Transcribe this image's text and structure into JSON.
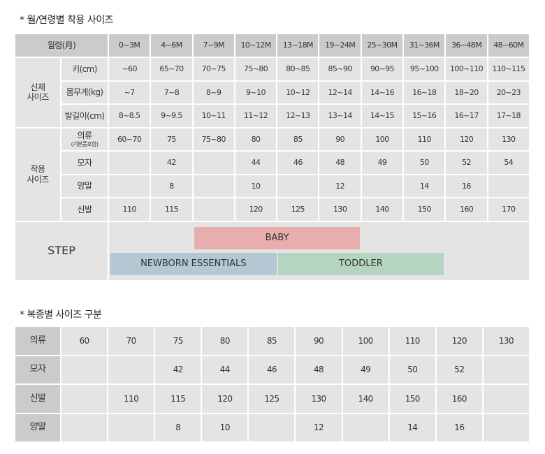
{
  "section1": {
    "title": "* 월/연령별 착용 사이즈",
    "header_label": "월령(月)",
    "ages": [
      "0~3M",
      "4~6M",
      "7~9M",
      "10~12M",
      "13~18M",
      "19~24M",
      "25~30M",
      "31~36M",
      "36~48M",
      "48~60M"
    ],
    "groups": [
      {
        "label": "신체\n사이즈",
        "rows": [
          {
            "label": "키(cm)",
            "values": [
              "~60",
              "65~70",
              "70~75",
              "75~80",
              "80~85",
              "85~90",
              "90~95",
              "95~100",
              "100~110",
              "110~115"
            ]
          },
          {
            "label": "몸무게(kg)",
            "values": [
              "~7",
              "7~8",
              "8~9",
              "9~10",
              "10~12",
              "12~14",
              "14~16",
              "16~18",
              "18~20",
              "20~23"
            ]
          },
          {
            "label": "발길이(cm)",
            "values": [
              "8~8.5",
              "9~9.5",
              "10~11",
              "11~12",
              "12~13",
              "13~14",
              "14~15",
              "15~16",
              "16~17",
              "17~18"
            ]
          }
        ]
      },
      {
        "label": "착용\n사이즈",
        "rows": [
          {
            "label": "의류",
            "sublabel": "(기본품포함)",
            "values": [
              "60~70",
              "75",
              "75~80",
              "80",
              "85",
              "90",
              "100",
              "110",
              "120",
              "130"
            ]
          },
          {
            "label": "모자",
            "values": [
              "",
              "42",
              "",
              "44",
              "46",
              "48",
              "49",
              "50",
              "52",
              "54"
            ]
          },
          {
            "label": "양말",
            "values": [
              "",
              "8",
              "",
              "10",
              "",
              "12",
              "",
              "14",
              "16",
              ""
            ]
          },
          {
            "label": "신발",
            "values": [
              "110",
              "115",
              "",
              "120",
              "125",
              "130",
              "140",
              "150",
              "160",
              "170"
            ]
          }
        ]
      }
    ],
    "step": {
      "label": "STEP",
      "bars": [
        {
          "name": "BABY",
          "from": "7~9M",
          "to": "19~24M",
          "row": 1,
          "color": "#e8adad"
        },
        {
          "name": "NEWBORN ESSENTIALS",
          "from": "0~3M",
          "to": "10~12M",
          "row": 2,
          "color": "#b4c8d4"
        },
        {
          "name": "TODDLER",
          "from": "13~18M",
          "to": "31~36M",
          "row": 2,
          "color": "#b4d6c0"
        }
      ]
    }
  },
  "section2": {
    "title": "* 복종별 사이즈 구분",
    "rows": [
      {
        "label": "의류",
        "values": [
          "60",
          "70",
          "75",
          "80",
          "85",
          "90",
          "100",
          "110",
          "120",
          "130"
        ]
      },
      {
        "label": "모자",
        "values": [
          "",
          "",
          "42",
          "44",
          "46",
          "48",
          "49",
          "50",
          "52",
          ""
        ]
      },
      {
        "label": "신발",
        "values": [
          "",
          "110",
          "115",
          "120",
          "125",
          "130",
          "140",
          "150",
          "160",
          ""
        ]
      },
      {
        "label": "양말",
        "values": [
          "",
          "",
          "8",
          "10",
          "",
          "12",
          "",
          "14",
          "16",
          ""
        ]
      }
    ]
  },
  "colors": {
    "header": "#cbcbcb",
    "cell": "#e4e4e4"
  }
}
